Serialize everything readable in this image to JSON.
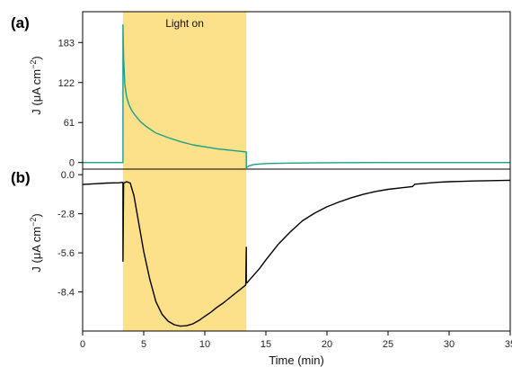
{
  "chart_data": [
    {
      "panel": "(a)",
      "type": "line",
      "ylabel_main": "J (μA cm",
      "ylabel_sup": "−2",
      "ylabel_tail": ")",
      "ylim": [
        -10,
        230
      ],
      "yticks": [
        0,
        61,
        122,
        183
      ],
      "ytick_labels": [
        "0",
        "61",
        "122",
        "183"
      ],
      "xlim": [
        0,
        35
      ],
      "annotation": "Light on",
      "light_on_interval": [
        3.3,
        13.4
      ],
      "grid": false,
      "series": [
        {
          "color": "#1aa08a",
          "x": [
            0,
            3.3,
            3.3,
            3.35,
            3.45,
            3.6,
            3.8,
            4.0,
            4.3,
            4.7,
            5.2,
            6.0,
            7.0,
            8.0,
            9.0,
            10.0,
            11.0,
            12.0,
            13.0,
            13.4,
            13.4,
            13.6,
            14.0,
            15.0,
            17.0,
            20.0,
            25.0,
            30.0,
            35.0
          ],
          "y": [
            0,
            0,
            210,
            160,
            120,
            100,
            88,
            80,
            72,
            63,
            55,
            45,
            38,
            32,
            27,
            24,
            21,
            19,
            17,
            16,
            -8,
            -5,
            -3,
            -1.5,
            -0.8,
            -0.3,
            0,
            0,
            0
          ]
        }
      ]
    },
    {
      "panel": "(b)",
      "type": "line",
      "ylabel_main": "J (μA cm",
      "ylabel_sup": "−2",
      "ylabel_tail": ")",
      "ylim": [
        -11.2,
        0.4
      ],
      "yticks": [
        0.0,
        -2.8,
        -5.6,
        -8.4
      ],
      "ytick_labels": [
        "0.0",
        "-2.8",
        "-5.6",
        "-8.4"
      ],
      "xlim": [
        0,
        35
      ],
      "xticks": [
        0,
        5,
        10,
        15,
        20,
        25,
        30,
        35
      ],
      "xtick_labels": [
        "0",
        "5",
        "10",
        "15",
        "20",
        "25",
        "30",
        "35"
      ],
      "xlabel": "Time (min)",
      "light_on_interval": [
        3.3,
        13.4
      ],
      "grid": false,
      "series": [
        {
          "color": "#000000",
          "x": [
            0,
            1,
            2,
            3,
            3.25,
            3.3,
            3.3,
            3.35,
            3.6,
            3.9,
            4.2,
            4.5,
            5.0,
            5.5,
            6.0,
            6.5,
            7.0,
            7.5,
            8.0,
            8.5,
            9.0,
            9.5,
            10.0,
            10.5,
            11.0,
            11.5,
            12.0,
            12.5,
            13.0,
            13.35,
            13.4,
            13.4,
            13.45,
            13.6,
            14.0,
            14.5,
            15.0,
            16.0,
            17.0,
            18.0,
            19.0,
            20.0,
            21.0,
            22.0,
            23.0,
            24.0,
            25.0,
            26.0,
            27.0,
            27.2,
            28.0,
            29.0,
            30.0,
            32.0,
            35.0
          ],
          "y": [
            -0.7,
            -0.65,
            -0.6,
            -0.58,
            -0.55,
            -0.6,
            -6.2,
            -0.6,
            -0.5,
            -0.6,
            -1.5,
            -3.0,
            -5.5,
            -7.5,
            -9.1,
            -10.0,
            -10.5,
            -10.75,
            -10.85,
            -10.82,
            -10.7,
            -10.45,
            -10.15,
            -9.85,
            -9.5,
            -9.2,
            -8.85,
            -8.5,
            -8.15,
            -7.9,
            -5.2,
            -7.7,
            -7.75,
            -7.6,
            -7.2,
            -6.7,
            -6.1,
            -5.0,
            -4.1,
            -3.3,
            -2.75,
            -2.3,
            -1.95,
            -1.65,
            -1.4,
            -1.2,
            -1.05,
            -0.95,
            -0.85,
            -0.68,
            -0.62,
            -0.55,
            -0.5,
            -0.45,
            -0.4
          ]
        }
      ]
    }
  ],
  "colors": {
    "shade": "#fde08a",
    "teal": "#1aa08a",
    "black": "#000000"
  }
}
